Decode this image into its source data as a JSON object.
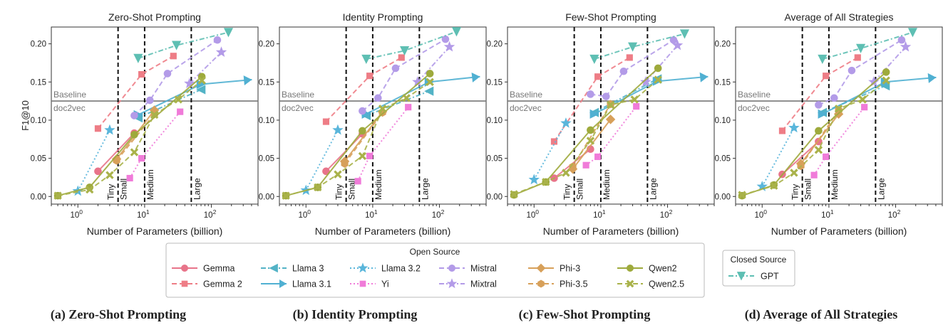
{
  "y_axis_label": "F1@10",
  "x_axis_label": "Number of Parameters (billion)",
  "baseline": {
    "value": 0.125,
    "label_above": "Baseline",
    "label_below": "doc2vec"
  },
  "size_bins": [
    {
      "label": "Tiny",
      "x": 4
    },
    {
      "label": "Small",
      "x": 10
    },
    {
      "label": "Medium",
      "x": 50
    },
    {
      "label": "Large",
      "x": 50
    }
  ],
  "size_bin_lines": [
    4,
    10,
    50
  ],
  "legend": {
    "open_title": "Open Source",
    "closed_title": "Closed Source"
  },
  "model_styles": [
    {
      "name": "Gemma",
      "color": "#e8748a",
      "marker": "circle",
      "dash": "solid",
      "group": "open"
    },
    {
      "name": "Gemma 2",
      "color": "#ee7d86",
      "marker": "square",
      "dash": "dash",
      "group": "open"
    },
    {
      "name": "Llama 3",
      "color": "#53b3c6",
      "marker": "tri-left",
      "dash": "dashdot",
      "group": "open"
    },
    {
      "name": "Llama 3.1",
      "color": "#50b0d2",
      "marker": "tri-right",
      "dash": "solid",
      "group": "open"
    },
    {
      "name": "Llama 3.2",
      "color": "#5ab6db",
      "marker": "star",
      "dash": "dot",
      "group": "open"
    },
    {
      "name": "Yi",
      "color": "#f07bd9",
      "marker": "square",
      "dash": "dot",
      "group": "open"
    },
    {
      "name": "Mistral",
      "color": "#b39be8",
      "marker": "circle",
      "dash": "dash",
      "group": "open"
    },
    {
      "name": "Mixtral",
      "color": "#b39be8",
      "marker": "star",
      "dash": "dashdot",
      "group": "open"
    },
    {
      "name": "Phi-3",
      "color": "#d7a05a",
      "marker": "diamond",
      "dash": "solid",
      "group": "open"
    },
    {
      "name": "Phi-3.5",
      "color": "#d7a05a",
      "marker": "hexagon",
      "dash": "dash",
      "group": "open"
    },
    {
      "name": "Qwen2",
      "color": "#9eaa3c",
      "marker": "circle",
      "dash": "solid",
      "group": "open"
    },
    {
      "name": "Qwen2.5",
      "color": "#a9b24a",
      "marker": "x",
      "dash": "dash",
      "group": "open"
    },
    {
      "name": "GPT",
      "color": "#5ebfb3",
      "marker": "tri-down",
      "dash": "dashdot",
      "group": "closed"
    }
  ],
  "chart_data": [
    {
      "type": "line",
      "title": "Zero-Shot Prompting",
      "caption": "(a) Zero-Shot Prompting",
      "xlabel": "Number of Parameters (billion)",
      "ylabel": "F1@10",
      "xscale": "log",
      "xlim": [
        0.4,
        500
      ],
      "ylim": [
        -0.01,
        0.222
      ],
      "yticks": [
        "0.00",
        "0.05",
        "0.10",
        "0.15",
        "0.20"
      ],
      "xticks": [
        "10^0",
        "10^1",
        "10^2"
      ],
      "series": [
        {
          "name": "Gemma",
          "points": [
            [
              2,
              0.033
            ],
            [
              7,
              0.083
            ]
          ]
        },
        {
          "name": "Gemma 2",
          "points": [
            [
              2,
              0.089
            ],
            [
              9,
              0.16
            ],
            [
              27,
              0.184
            ]
          ]
        },
        {
          "name": "Llama 3",
          "points": [
            [
              8,
              0.103
            ],
            [
              70,
              0.14
            ]
          ]
        },
        {
          "name": "Llama 3.1",
          "points": [
            [
              8,
              0.107
            ],
            [
              70,
              0.147
            ],
            [
              405,
              0.153
            ]
          ]
        },
        {
          "name": "Llama 3.2",
          "points": [
            [
              1,
              0.007
            ],
            [
              3,
              0.087
            ]
          ]
        },
        {
          "name": "Yi",
          "points": [
            [
              6,
              0.024
            ],
            [
              9,
              0.05
            ],
            [
              34,
              0.111
            ]
          ]
        },
        {
          "name": "Mistral",
          "points": [
            [
              7,
              0.106
            ],
            [
              12,
              0.126
            ],
            [
              22,
              0.161
            ],
            [
              123,
              0.205
            ]
          ]
        },
        {
          "name": "Mixtral",
          "points": [
            [
              47,
              0.148
            ],
            [
              141,
              0.189
            ]
          ]
        },
        {
          "name": "Phi-3",
          "points": [
            [
              3.8,
              0.049
            ],
            [
              14,
              0.113
            ]
          ]
        },
        {
          "name": "Phi-3.5",
          "points": [
            [
              3.8,
              0.047
            ],
            [
              14,
              0.108
            ]
          ]
        },
        {
          "name": "Qwen2",
          "points": [
            [
              0.5,
              0.001
            ],
            [
              1.5,
              0.012
            ],
            [
              7,
              0.081
            ],
            [
              72,
              0.157
            ]
          ]
        },
        {
          "name": "Qwen2.5",
          "points": [
            [
              0.5,
              0.001
            ],
            [
              1.5,
              0.009
            ],
            [
              3,
              0.028
            ],
            [
              7,
              0.058
            ],
            [
              14,
              0.107
            ],
            [
              32,
              0.127
            ],
            [
              72,
              0.152
            ]
          ]
        },
        {
          "name": "GPT",
          "points": [
            [
              8,
              0.181
            ],
            [
              30,
              0.198
            ],
            [
              180,
              0.215
            ]
          ]
        }
      ]
    },
    {
      "type": "line",
      "title": "Identity Prompting",
      "caption": "(b) Identity Prompting",
      "xlabel": "Number of Parameters (billion)",
      "ylabel": "F1@10",
      "xscale": "log",
      "xlim": [
        0.4,
        500
      ],
      "ylim": [
        -0.01,
        0.222
      ],
      "yticks": [
        "0.00",
        "0.05",
        "0.10",
        "0.15",
        "0.20"
      ],
      "xticks": [
        "10^0",
        "10^1",
        "10^2"
      ],
      "series": [
        {
          "name": "Gemma",
          "points": [
            [
              2,
              0.033
            ],
            [
              7,
              0.082
            ]
          ]
        },
        {
          "name": "Gemma 2",
          "points": [
            [
              2,
              0.098
            ],
            [
              9,
              0.158
            ],
            [
              27,
              0.182
            ]
          ]
        },
        {
          "name": "Llama 3",
          "points": [
            [
              8,
              0.106
            ],
            [
              70,
              0.138
            ]
          ]
        },
        {
          "name": "Llama 3.1",
          "points": [
            [
              8,
              0.108
            ],
            [
              70,
              0.15
            ],
            [
              405,
              0.157
            ]
          ]
        },
        {
          "name": "Llama 3.2",
          "points": [
            [
              1,
              0.008
            ],
            [
              3,
              0.087
            ]
          ]
        },
        {
          "name": "Yi",
          "points": [
            [
              6,
              0.02
            ],
            [
              9,
              0.053
            ],
            [
              34,
              0.117
            ]
          ]
        },
        {
          "name": "Mistral",
          "points": [
            [
              7,
              0.112
            ],
            [
              12,
              0.129
            ],
            [
              22,
              0.168
            ],
            [
              123,
              0.206
            ]
          ]
        },
        {
          "name": "Mixtral",
          "points": [
            [
              47,
              0.15
            ],
            [
              141,
              0.196
            ]
          ]
        },
        {
          "name": "Phi-3",
          "points": [
            [
              3.8,
              0.046
            ],
            [
              14,
              0.111
            ]
          ]
        },
        {
          "name": "Phi-3.5",
          "points": [
            [
              3.8,
              0.043
            ],
            [
              14,
              0.11
            ]
          ]
        },
        {
          "name": "Qwen2",
          "points": [
            [
              0.5,
              0.001
            ],
            [
              1.5,
              0.012
            ],
            [
              7,
              0.086
            ],
            [
              72,
              0.161
            ]
          ]
        },
        {
          "name": "Qwen2.5",
          "points": [
            [
              0.5,
              0.001
            ],
            [
              1.5,
              0.012
            ],
            [
              3,
              0.029
            ],
            [
              7,
              0.053
            ],
            [
              14,
              0.115
            ],
            [
              32,
              0.129
            ],
            [
              72,
              0.15
            ]
          ]
        },
        {
          "name": "GPT",
          "points": [
            [
              8,
              0.18
            ],
            [
              30,
              0.191
            ],
            [
              180,
              0.216
            ]
          ]
        }
      ]
    },
    {
      "type": "line",
      "title": "Few-Shot Prompting",
      "caption": "(c) Few-Shot Prompting",
      "xlabel": "Number of Parameters (billion)",
      "ylabel": "F1@10",
      "xscale": "log",
      "xlim": [
        0.4,
        500
      ],
      "ylim": [
        -0.01,
        0.222
      ],
      "yticks": [
        "0.00",
        "0.05",
        "0.10",
        "0.15",
        "0.20"
      ],
      "xticks": [
        "10^0",
        "10^1",
        "10^2"
      ],
      "series": [
        {
          "name": "Gemma",
          "points": [
            [
              2,
              0.024
            ],
            [
              7,
              0.062
            ]
          ]
        },
        {
          "name": "Gemma 2",
          "points": [
            [
              2,
              0.072
            ],
            [
              9,
              0.157
            ],
            [
              27,
              0.182
            ]
          ]
        },
        {
          "name": "Llama 3",
          "points": [
            [
              8,
              0.11
            ],
            [
              70,
              0.154
            ]
          ]
        },
        {
          "name": "Llama 3.1",
          "points": [
            [
              8,
              0.108
            ],
            [
              70,
              0.151
            ],
            [
              405,
              0.157
            ]
          ]
        },
        {
          "name": "Llama 3.2",
          "points": [
            [
              1,
              0.022
            ],
            [
              3,
              0.096
            ]
          ]
        },
        {
          "name": "Yi",
          "points": [
            [
              6,
              0.041
            ],
            [
              9,
              0.052
            ],
            [
              34,
              0.118
            ]
          ]
        },
        {
          "name": "Mistral",
          "points": [
            [
              7,
              0.134
            ],
            [
              12,
              0.131
            ],
            [
              22,
              0.164
            ],
            [
              123,
              0.205
            ]
          ]
        },
        {
          "name": "Mixtral",
          "points": [
            [
              47,
              0.15
            ],
            [
              141,
              0.198
            ]
          ]
        },
        {
          "name": "Phi-3",
          "points": [
            [
              3.8,
              0.036
            ],
            [
              14,
              0.101
            ]
          ]
        },
        {
          "name": "Phi-3.5",
          "points": [
            [
              3.8,
              0.039
            ],
            [
              14,
              0.121
            ]
          ]
        },
        {
          "name": "Qwen2",
          "points": [
            [
              0.5,
              0.002
            ],
            [
              1.5,
              0.019
            ],
            [
              7,
              0.087
            ],
            [
              72,
              0.168
            ]
          ]
        },
        {
          "name": "Qwen2.5",
          "points": [
            [
              0.5,
              0.003
            ],
            [
              1.5,
              0.019
            ],
            [
              3,
              0.031
            ],
            [
              7,
              0.073
            ],
            [
              14,
              0.12
            ],
            [
              32,
              0.127
            ],
            [
              72,
              0.153
            ]
          ]
        },
        {
          "name": "GPT",
          "points": [
            [
              8,
              0.18
            ],
            [
              30,
              0.196
            ],
            [
              180,
              0.213
            ]
          ]
        }
      ]
    },
    {
      "type": "line",
      "title": "Average of All Strategies",
      "caption": "(d) Average of All Strategies",
      "xlabel": "Number of Parameters (billion)",
      "ylabel": "F1@10",
      "xscale": "log",
      "xlim": [
        0.4,
        500
      ],
      "ylim": [
        -0.01,
        0.222
      ],
      "yticks": [
        "0.00",
        "0.05",
        "0.10",
        "0.15",
        "0.20"
      ],
      "xticks": [
        "10^0",
        "10^1",
        "10^2"
      ],
      "series": [
        {
          "name": "Gemma",
          "points": [
            [
              2,
              0.029
            ],
            [
              7,
              0.072
            ]
          ]
        },
        {
          "name": "Gemma 2",
          "points": [
            [
              2,
              0.086
            ],
            [
              9,
              0.158
            ],
            [
              27,
              0.182
            ]
          ]
        },
        {
          "name": "Llama 3",
          "points": [
            [
              8,
              0.11
            ],
            [
              70,
              0.145
            ]
          ]
        },
        {
          "name": "Llama 3.1",
          "points": [
            [
              8,
              0.108
            ],
            [
              70,
              0.15
            ],
            [
              405,
              0.156
            ]
          ]
        },
        {
          "name": "Llama 3.2",
          "points": [
            [
              1,
              0.013
            ],
            [
              3,
              0.09
            ]
          ]
        },
        {
          "name": "Yi",
          "points": [
            [
              6,
              0.028
            ],
            [
              9,
              0.052
            ],
            [
              34,
              0.117
            ]
          ]
        },
        {
          "name": "Mistral",
          "points": [
            [
              7,
              0.12
            ],
            [
              12,
              0.129
            ],
            [
              22,
              0.165
            ],
            [
              123,
              0.205
            ]
          ]
        },
        {
          "name": "Mixtral",
          "points": [
            [
              47,
              0.15
            ],
            [
              141,
              0.196
            ]
          ]
        },
        {
          "name": "Phi-3",
          "points": [
            [
              3.8,
              0.043
            ],
            [
              14,
              0.108
            ]
          ]
        },
        {
          "name": "Phi-3.5",
          "points": [
            [
              3.8,
              0.04
            ],
            [
              14,
              0.113
            ]
          ]
        },
        {
          "name": "Qwen2",
          "points": [
            [
              0.5,
              0.001
            ],
            [
              1.5,
              0.015
            ],
            [
              7,
              0.086
            ],
            [
              72,
              0.163
            ]
          ]
        },
        {
          "name": "Qwen2.5",
          "points": [
            [
              0.5,
              0.002
            ],
            [
              1.5,
              0.014
            ],
            [
              3,
              0.031
            ],
            [
              7,
              0.061
            ],
            [
              14,
              0.115
            ],
            [
              32,
              0.127
            ],
            [
              72,
              0.152
            ]
          ]
        },
        {
          "name": "GPT",
          "points": [
            [
              8,
              0.18
            ],
            [
              30,
              0.194
            ],
            [
              180,
              0.215
            ]
          ]
        }
      ]
    }
  ]
}
